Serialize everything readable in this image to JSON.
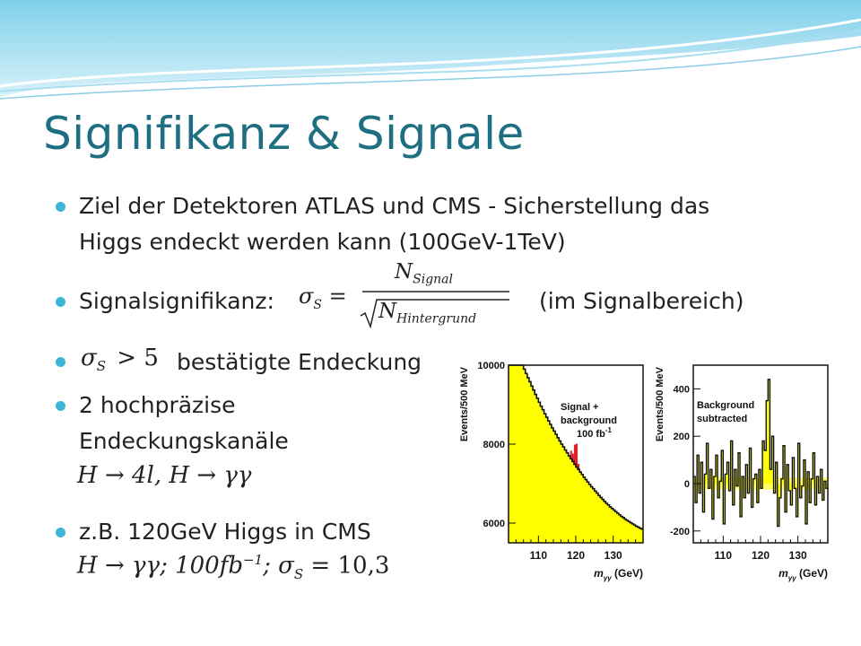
{
  "slide": {
    "title": "Signifikanz & Signale",
    "bullets": {
      "b1_line1": "Ziel der Detektoren ATLAS und CMS - Sicherstellung das",
      "b1_line2": "Higgs endeckt werden kann (100GeV-1TeV)",
      "b2_label": "Signalsignifikanz:",
      "b2_suffix": "(im Signalbereich)",
      "b3_text": "bestätigte Endeckung",
      "b4_line1": "2 hochpräzise",
      "b4_line2": "Endeckungskanäle",
      "b5_text": "z.B. 120GeV Higgs in CMS"
    },
    "formulas": {
      "sigma_lhs": "σ",
      "sigma_sub": "S",
      "equals": "=",
      "numerator": "N",
      "numerator_sub": "Signal",
      "denominator": "N",
      "denominator_sub": "Hintergrund",
      "sigma_gt": "σ",
      "sigma_gt_sub": "S",
      "gt_value": "> 5",
      "channels": "H → 4l, H → γγ",
      "cms_example_a": "H → γγ;  100fb",
      "cms_example_sup": "−1",
      "cms_example_b": ";  σ",
      "cms_example_sub": "S",
      "cms_example_c": " = 10,3"
    }
  },
  "chart_data": [
    {
      "type": "bar",
      "ylabel": "Events/500 MeV",
      "xlabel": "m",
      "xlabel_sub": "γγ",
      "xlabel_unit": "(GeV)",
      "annotation_lines": [
        "Signal +",
        "background",
        "100 fb"
      ],
      "annotation_sup": "-1",
      "xlim": [
        102,
        138
      ],
      "ylim": [
        5500,
        10000
      ],
      "xticks": [
        110,
        120,
        130
      ],
      "yticks": [
        6000,
        8000,
        10000
      ],
      "bin_width": 0.5,
      "x_start": 102,
      "background": [
        10800,
        10700,
        10600,
        10480,
        10360,
        10250,
        10130,
        10010,
        9900,
        9790,
        9680,
        9580,
        9470,
        9370,
        9260,
        9160,
        9060,
        8960,
        8870,
        8770,
        8680,
        8590,
        8500,
        8410,
        8330,
        8250,
        8160,
        8080,
        8000,
        7930,
        7850,
        7780,
        7700,
        7630,
        7560,
        7490,
        7420,
        7360,
        7290,
        7230,
        7160,
        7100,
        7040,
        6980,
        6920,
        6870,
        6810,
        6760,
        6700,
        6650,
        6600,
        6550,
        6500,
        6460,
        6410,
        6370,
        6330,
        6290,
        6250,
        6210,
        6170,
        6140,
        6100,
        6070,
        6040,
        6010,
        5980,
        5950,
        5920,
        5900,
        5870,
        5850
      ],
      "signal_x": [
        118.5,
        119,
        119.5,
        120,
        120.5,
        121
      ],
      "signal_total": [
        7835,
        7760,
        7990,
        8010,
        7500,
        7320
      ]
    },
    {
      "type": "bar",
      "ylabel": "Events/500 MeV",
      "xlabel": "m",
      "xlabel_sub": "γγ",
      "xlabel_unit": "(GeV)",
      "annotation_lines": [
        "Background",
        "subtracted"
      ],
      "xlim": [
        102,
        138
      ],
      "ylim": [
        -250,
        500
      ],
      "xticks": [
        110,
        120,
        130
      ],
      "yticks": [
        -200,
        0,
        200,
        400
      ],
      "bin_width": 0.5,
      "x_start": 102,
      "values": [
        30,
        -80,
        120,
        -40,
        90,
        -120,
        40,
        170,
        -20,
        60,
        -150,
        30,
        120,
        -60,
        10,
        140,
        -170,
        40,
        90,
        -30,
        180,
        -90,
        60,
        -10,
        130,
        -140,
        30,
        -60,
        80,
        -40,
        150,
        -100,
        20,
        40,
        -80,
        60,
        -20,
        180,
        140,
        350,
        440,
        60,
        200,
        -40,
        90,
        -180,
        -60,
        20,
        160,
        -120,
        80,
        -30,
        -90,
        110,
        -20,
        -140,
        170,
        -60,
        -10,
        100,
        -170,
        50,
        -80,
        20,
        130,
        -90,
        30,
        -40,
        60,
        -70,
        10,
        -20
      ]
    }
  ]
}
